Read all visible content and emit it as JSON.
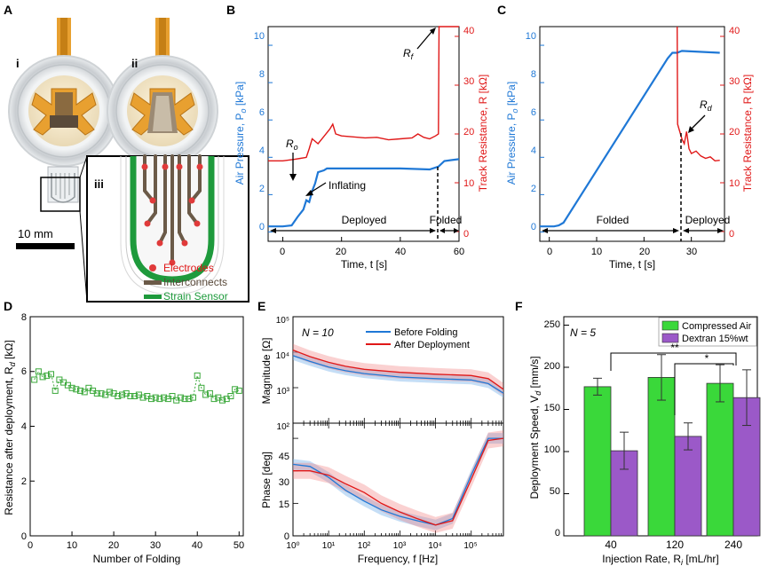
{
  "colors": {
    "blue": "#1f78d6",
    "red": "#e01818",
    "green": "#2bb32b",
    "green_marker": "#3aa83a",
    "purple": "#9b59c8",
    "bar_green": "#3ad83a",
    "copper": "#d9a040",
    "board": "#e8a030"
  },
  "panel_labels": {
    "a": "A",
    "b": "B",
    "c": "C",
    "d": "D",
    "e": "E",
    "f": "F"
  },
  "panel_a": {
    "sub_i": "i",
    "sub_ii": "ii",
    "sub_iii": "iii",
    "scale_bar": "10 mm",
    "legend": [
      "Electrodes",
      "Interconnects",
      "Strain Sensor"
    ]
  },
  "panel_b": {
    "ylabel_left": "Air Pressure, P",
    "ylabel_left_sub": "o",
    "ylabel_left_unit": " [kPa]",
    "ylabel_right": "Track Resistance, R",
    "ylabel_right_unit": " [kΩ]",
    "xlabel": "Time, t [s]",
    "xticks": [
      "0",
      "20",
      "40",
      "60"
    ],
    "yticks_left": [
      "0",
      "2",
      "4",
      "6",
      "8",
      "10"
    ],
    "yticks_right": [
      "0",
      "10",
      "20",
      "30",
      "40"
    ],
    "annot_ro": "R",
    "annot_ro_sub": "o",
    "annot_rf": "R",
    "annot_rf_sub": "f",
    "annot_inflating": "Inflating",
    "span_deployed": "Deployed",
    "span_folded": "Folded"
  },
  "panel_c": {
    "xticks": [
      "0",
      "10",
      "20",
      "30"
    ],
    "annot_rd": "R",
    "annot_rd_sub": "d",
    "span_folded": "Folded",
    "span_deployed": "Deployed"
  },
  "panel_d": {
    "ylabel": "Resistance after deployment, R",
    "ylabel_sub": "d",
    "ylabel_unit": " [kΩ]",
    "xlabel": "Number of Folding",
    "xticks": [
      "0",
      "10",
      "20",
      "30",
      "40",
      "50"
    ],
    "yticks": [
      "0",
      "2",
      "4",
      "6",
      "8"
    ]
  },
  "panel_e": {
    "n_label": "N = 10",
    "legend": [
      "Before Folding",
      "After Deployment"
    ],
    "ylabel_top": "Magnitude [Ω]",
    "ylabel_bottom": "Phase [deg]",
    "xlabel": "Frequency, f [Hz]",
    "yticks_top": [
      "10²",
      "10³",
      "10⁴",
      "10⁵"
    ],
    "yticks_bottom": [
      "0",
      "15",
      "30",
      "45"
    ],
    "xticks": [
      "10⁰",
      "10¹",
      "10²",
      "10³",
      "10⁴",
      "10⁵"
    ]
  },
  "panel_f": {
    "n_label": "N = 5",
    "legend": [
      "Compressed Air",
      "Dextran 15%wt"
    ],
    "ylabel": "Deployment Speed, V",
    "ylabel_sub": "d",
    "ylabel_unit": " [mm/s]",
    "xlabel": "Injection Rate, R",
    "xlabel_sub": "i",
    "xlabel_unit": " [mL/hr]",
    "yticks": [
      "0",
      "50",
      "100",
      "150",
      "200",
      "250"
    ],
    "sig1": "**",
    "sig2": "*"
  },
  "chart_data": [
    {
      "panel": "B",
      "type": "line",
      "title": "",
      "xlabel": "Time, t [s]",
      "ylabel": "Air Pressure, Po [kPa]",
      "ylabel_right": "Track Resistance, R [kΩ]",
      "xlim": [
        -5,
        60
      ],
      "ylim": [
        -0.5,
        11
      ],
      "ylim_right": [
        -2,
        42
      ],
      "series": [
        {
          "name": "Air Pressure",
          "axis": "left",
          "x": [
            -5,
            0,
            3,
            5,
            7,
            8,
            9,
            10,
            11,
            12,
            14,
            15,
            20,
            30,
            40,
            50,
            53,
            55,
            60
          ],
          "y": [
            0.3,
            0.3,
            0.35,
            0.8,
            1.2,
            1.7,
            1.6,
            2.2,
            2.6,
            3.2,
            3.3,
            3.4,
            3.4,
            3.4,
            3.4,
            3.35,
            3.5,
            3.8,
            3.9
          ]
        },
        {
          "name": "Track Resistance",
          "axis": "right",
          "x": [
            -5,
            0,
            4,
            6,
            8,
            9,
            10,
            12,
            14,
            16,
            17,
            18,
            20,
            24,
            28,
            32,
            36,
            40,
            44,
            46,
            48,
            50,
            52,
            53,
            53.2,
            60
          ],
          "y": [
            14.5,
            14.5,
            14.8,
            15,
            15.2,
            17,
            19,
            18,
            19.5,
            21,
            22,
            20,
            19.6,
            19.4,
            19.2,
            19.3,
            18.8,
            19,
            19.2,
            20,
            19.3,
            19,
            19.6,
            20,
            42,
            42
          ]
        }
      ],
      "annotations": [
        "Ro",
        "Rf",
        "Inflating",
        "Deployed",
        "Folded"
      ]
    },
    {
      "panel": "C",
      "type": "line",
      "xlabel": "Time, t [s]",
      "ylabel": "Air Pressure, Po [kPa]",
      "ylabel_right": "Track Resistance, R [kΩ]",
      "xlim": [
        -2,
        37
      ],
      "ylim": [
        -0.5,
        11
      ],
      "ylim_right": [
        -2,
        42
      ],
      "series": [
        {
          "name": "Air Pressure",
          "axis": "left",
          "x": [
            -2,
            1,
            2,
            3,
            25,
            26,
            27,
            28,
            36
          ],
          "y": [
            0.3,
            0.3,
            0.35,
            0.5,
            9.3,
            9.6,
            9.6,
            9.7,
            9.6
          ]
        },
        {
          "name": "Track Resistance",
          "axis": "right",
          "x": [
            27,
            27.1,
            27.4,
            28,
            28.5,
            29,
            29.5,
            30,
            31,
            32,
            33,
            34,
            35,
            36
          ],
          "y": [
            42,
            22,
            21,
            19,
            18,
            20.5,
            17,
            16,
            16.5,
            15.5,
            15,
            15.3,
            14.5,
            14.6
          ]
        }
      ],
      "annotations": [
        "Rd",
        "Folded",
        "Deployed"
      ]
    },
    {
      "panel": "D",
      "type": "scatter",
      "xlabel": "Number of Folding",
      "ylabel": "Resistance after deployment, Rd [kΩ]",
      "xlim": [
        0,
        51
      ],
      "ylim": [
        0,
        8
      ],
      "x": [
        1,
        2,
        3,
        4,
        5,
        6,
        7,
        8,
        9,
        10,
        11,
        12,
        13,
        14,
        15,
        16,
        17,
        18,
        19,
        20,
        21,
        22,
        23,
        24,
        25,
        26,
        27,
        28,
        29,
        30,
        31,
        32,
        33,
        34,
        35,
        36,
        37,
        38,
        39,
        40,
        41,
        42,
        43,
        44,
        45,
        46,
        47,
        48,
        49,
        50
      ],
      "y": [
        5.7,
        6.0,
        5.8,
        5.85,
        5.9,
        5.3,
        5.7,
        5.6,
        5.5,
        5.4,
        5.35,
        5.3,
        5.25,
        5.4,
        5.3,
        5.2,
        5.2,
        5.15,
        5.25,
        5.2,
        5.1,
        5.15,
        5.2,
        5.1,
        5.1,
        5.15,
        5.05,
        5.1,
        5.0,
        5.05,
        5.0,
        5.05,
        5.0,
        5.1,
        4.95,
        5.05,
        5.0,
        5.0,
        5.05,
        5.85,
        5.4,
        5.15,
        5.2,
        5.0,
        5.05,
        4.95,
        5.0,
        5.1,
        5.35,
        5.3
      ]
    },
    {
      "panel": "E-top",
      "type": "line",
      "xlabel": "Frequency, f [Hz]",
      "ylabel": "Magnitude [Ω]",
      "xscale": "log",
      "yscale": "log",
      "xlim": [
        1,
        800000
      ],
      "ylim": [
        100,
        100000
      ],
      "series": [
        {
          "name": "Before Folding",
          "x": [
            1,
            3,
            10,
            30,
            100,
            1000,
            10000,
            100000,
            300000,
            800000
          ],
          "y": [
            8000,
            5500,
            3800,
            3000,
            2500,
            2000,
            1800,
            1650,
            1300,
            700
          ]
        },
        {
          "name": "After Deployment",
          "x": [
            1,
            3,
            10,
            30,
            100,
            1000,
            10000,
            100000,
            300000,
            800000
          ],
          "y": [
            11500,
            7500,
            5200,
            4000,
            3300,
            2700,
            2400,
            2200,
            1800,
            900
          ]
        }
      ]
    },
    {
      "panel": "E-bottom",
      "type": "line",
      "xlabel": "Frequency, f [Hz]",
      "ylabel": "Phase [deg]",
      "xscale": "log",
      "xlim": [
        1,
        800000
      ],
      "ylim": [
        0,
        52
      ],
      "series": [
        {
          "name": "Before Folding",
          "x": [
            1,
            3,
            10,
            30,
            100,
            300,
            1000,
            3000,
            10000,
            30000,
            100000,
            300000,
            800000
          ],
          "y": [
            33,
            32,
            27,
            21,
            16,
            12,
            9,
            7,
            5,
            8,
            28,
            45,
            45
          ]
        },
        {
          "name": "After Deployment",
          "x": [
            1,
            3,
            10,
            30,
            100,
            300,
            1000,
            3000,
            10000,
            30000,
            100000,
            300000,
            800000
          ],
          "y": [
            30,
            30,
            28,
            24,
            20,
            15,
            11,
            8,
            5,
            7,
            26,
            44,
            45
          ]
        }
      ]
    },
    {
      "panel": "F",
      "type": "bar",
      "xlabel": "Injection Rate, Ri [mL/hr]",
      "ylabel": "Deployment Speed, Vd [mm/s]",
      "categories": [
        "40",
        "120",
        "240"
      ],
      "ylim": [
        0,
        260
      ],
      "series": [
        {
          "name": "Compressed Air",
          "values": [
            177,
            188,
            181
          ],
          "errors": [
            10,
            27,
            22
          ]
        },
        {
          "name": "Dextran 15%wt",
          "values": [
            101,
            118,
            164
          ],
          "errors": [
            22,
            16,
            33
          ]
        }
      ],
      "annotations": [
        "**",
        "*",
        "N = 5"
      ]
    }
  ]
}
